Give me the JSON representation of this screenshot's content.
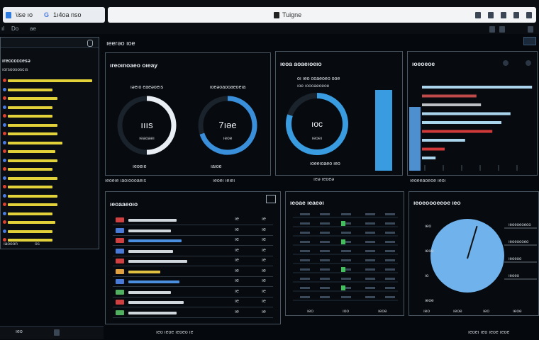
{
  "browser": {
    "tab_title": "\\ise  ıo",
    "tab_title2": "1ı4oa  nso",
    "address_text": "Tuigne"
  },
  "menubar": {
    "items": [
      "ıl",
      "Do",
      "ae"
    ]
  },
  "header": {
    "title": "ıeerəo ıoe"
  },
  "left_panel": {
    "title": "ırecccccesə",
    "subtitle": "ıorsoososcıs",
    "footer_left": "ıaooon",
    "footer_right": "os",
    "bars": [
      0.85,
      0.45,
      0.5,
      0.45,
      0.45,
      0.5,
      0.5,
      0.55,
      0.48,
      0.5,
      0.45,
      0.5,
      0.45,
      0.5,
      0.5,
      0.45,
      0.48,
      0.45,
      0.45
    ],
    "colors": {
      "bar": "#e3d13a",
      "dot": "#d9432f",
      "accent": "#4b7be0"
    }
  },
  "donut_panel": {
    "title": "ıreoınoaeo oıeay",
    "gauges": [
      {
        "label": "ıəeıo  eaeəoeıs",
        "value": "ıııs",
        "caption": "ıeaoaeı",
        "fraction": 0.5,
        "color": "#e8eef4"
      },
      {
        "label": "ıoeəoaooaeoeıa",
        "value": "7ıəe",
        "caption": "ıeoe",
        "fraction": 0.7,
        "color": "#3a8fdb"
      }
    ],
    "footer_left": "ıeoeıe",
    "footer_right": "ıaıoe",
    "strip_left": "ıeoeıe   ıaoıoooaeıs",
    "strip_right": "ıeoeı   ıeıeı"
  },
  "gauge_panel": {
    "title": "ıeoa aoaeıoeıo",
    "label": "oı ıeo ooaeoeo ooe",
    "sub": "ıoe ıoooaeoeoe",
    "value": "ıoc",
    "caption": "ıeoeı",
    "fraction": 0.8,
    "color": "#3a9ce0",
    "bar_fraction": 0.95,
    "footer": "ıoeeıoaeo ıeo",
    "footer2": "ıeə   ıeoeə"
  },
  "hbar_panel": {
    "title": "ıoeoeoe",
    "bars": [
      {
        "fraction": 0.97,
        "color": "#a9d4ec"
      },
      {
        "fraction": 0.48,
        "color": "#c04a4a"
      },
      {
        "fraction": 0.52,
        "color": "#bcbfc4"
      },
      {
        "fraction": 0.78,
        "color": "#a9d4ec"
      },
      {
        "fraction": 0.7,
        "color": "#a9d4ec"
      },
      {
        "fraction": 0.62,
        "color": "#d23a3a"
      },
      {
        "fraction": 0.38,
        "color": "#a9d4ec"
      },
      {
        "fraction": 0.2,
        "color": "#d23a3a"
      },
      {
        "fraction": 0.12,
        "color": "#a9d4ec"
      }
    ],
    "tall_bar_fraction": 0.75,
    "tall_bar_color": "#4e8fd0",
    "footer": "ıeoeeaoeoe  ıeoı"
  },
  "table_panel": {
    "title": "ıeoaaeoıo",
    "rows": [
      {
        "icon_color": "#d04040",
        "fraction": 0.45,
        "bar_color": "#cfd6dc",
        "val": "ıe",
        "val2": "ıe"
      },
      {
        "icon_color": "#4a7ad8",
        "fraction": 0.4,
        "bar_color": "#cfd6dc",
        "val": "ıe",
        "val2": "ıe"
      },
      {
        "icon_color": "#d04040",
        "fraction": 0.5,
        "bar_color": "#4a8fe0",
        "val": "ıe",
        "val2": "ıe"
      },
      {
        "icon_color": "#4a7ad8",
        "fraction": 0.42,
        "bar_color": "#cfd6dc",
        "val": "ıe",
        "val2": "ıe"
      },
      {
        "icon_color": "#d04040",
        "fraction": 0.55,
        "bar_color": "#cfd6dc",
        "val": "ıe",
        "val2": "ıe"
      },
      {
        "icon_color": "#e0a040",
        "fraction": 0.3,
        "bar_color": "#e0c040",
        "val": "ıe",
        "val2": "ıe"
      },
      {
        "icon_color": "#4a7ad8",
        "fraction": 0.48,
        "bar_color": "#4a8fe0",
        "val": "ıe",
        "val2": "ıe"
      },
      {
        "icon_color": "#50b060",
        "fraction": 0.4,
        "bar_color": "#cfd6dc",
        "val": "ıe",
        "val2": "ıe"
      },
      {
        "icon_color": "#d04040",
        "fraction": 0.52,
        "bar_color": "#cfd6dc",
        "val": "ıe",
        "val2": "ıe"
      },
      {
        "icon_color": "#50b060",
        "fraction": 0.45,
        "bar_color": "#cfd6dc",
        "val": "ıe",
        "val2": "ıe"
      }
    ],
    "footer": "ıeo ıeoe ıeoeo ıe"
  },
  "grid_panel": {
    "title": "ıeoae ıeaeəı",
    "rows": 10,
    "marks": [
      {
        "row": 1,
        "col": 2,
        "color": "#3fc15a"
      },
      {
        "row": 3,
        "col": 2,
        "color": "#3fc15a"
      },
      {
        "row": 6,
        "col": 2,
        "color": "#3fc15a"
      },
      {
        "row": 8,
        "col": 2,
        "color": "#3fc15a"
      }
    ],
    "footer": [
      "ıeo",
      "ıoo",
      "ıeoe"
    ]
  },
  "pie_panel": {
    "title": "ıeoeoooeeoe ıeo",
    "labels_left": [
      "ıeo",
      "ıeoe",
      "ıo",
      "ıeoe"
    ],
    "labels_right": [
      "ıeoeoeoeoo",
      "ıeoeoooeo",
      "ıeoeoo",
      "ıeoeo"
    ],
    "pie_color": "#6fb2ec",
    "needle_fraction": 0.05,
    "footer": [
      "ıeo",
      "ıeoe",
      "ıeo",
      "ıeoe"
    ]
  },
  "statusbar": {
    "left": "ıeo",
    "right": "ıeoeı   ıeo   ıeoe ıeoe"
  }
}
